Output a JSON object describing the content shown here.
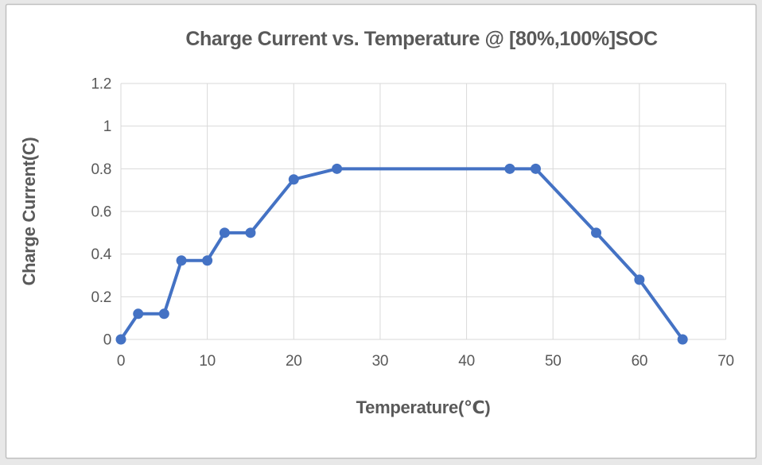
{
  "chart_data": {
    "type": "line",
    "title": "Charge Current vs. Temperature @ [80%,100%]SOC",
    "xlabel": "Temperature(℃)",
    "ylabel": "Charge Current(C)",
    "x": [
      0,
      2,
      5,
      7,
      10,
      12,
      15,
      20,
      25,
      45,
      48,
      55,
      60,
      65
    ],
    "y": [
      0,
      0.12,
      0.12,
      0.37,
      0.37,
      0.5,
      0.5,
      0.75,
      0.8,
      0.8,
      0.8,
      0.5,
      0.28,
      0
    ],
    "xlim": [
      0,
      70
    ],
    "ylim": [
      0,
      1.2
    ],
    "xticks": [
      0,
      10,
      20,
      30,
      40,
      50,
      60,
      70
    ],
    "xtick_labels": [
      "0",
      "10",
      "20",
      "30",
      "40",
      "50",
      "60",
      "70"
    ],
    "yticks": [
      0,
      0.2,
      0.4,
      0.6,
      0.8,
      1,
      1.2
    ],
    "ytick_labels": [
      "0",
      "0.2",
      "0.4",
      "0.6",
      "0.8",
      "1",
      "1.2"
    ],
    "grid": true,
    "legend": "none",
    "marker": "circle",
    "line_width": 4,
    "marker_radius": 6.5,
    "colors": {
      "series": "#4472C4",
      "grid": "#d9d9d9",
      "text": "#595959",
      "frame_border": "#bfbfbf",
      "chart_bg": "#ffffff",
      "page_bg": "#e8e8e8"
    }
  }
}
